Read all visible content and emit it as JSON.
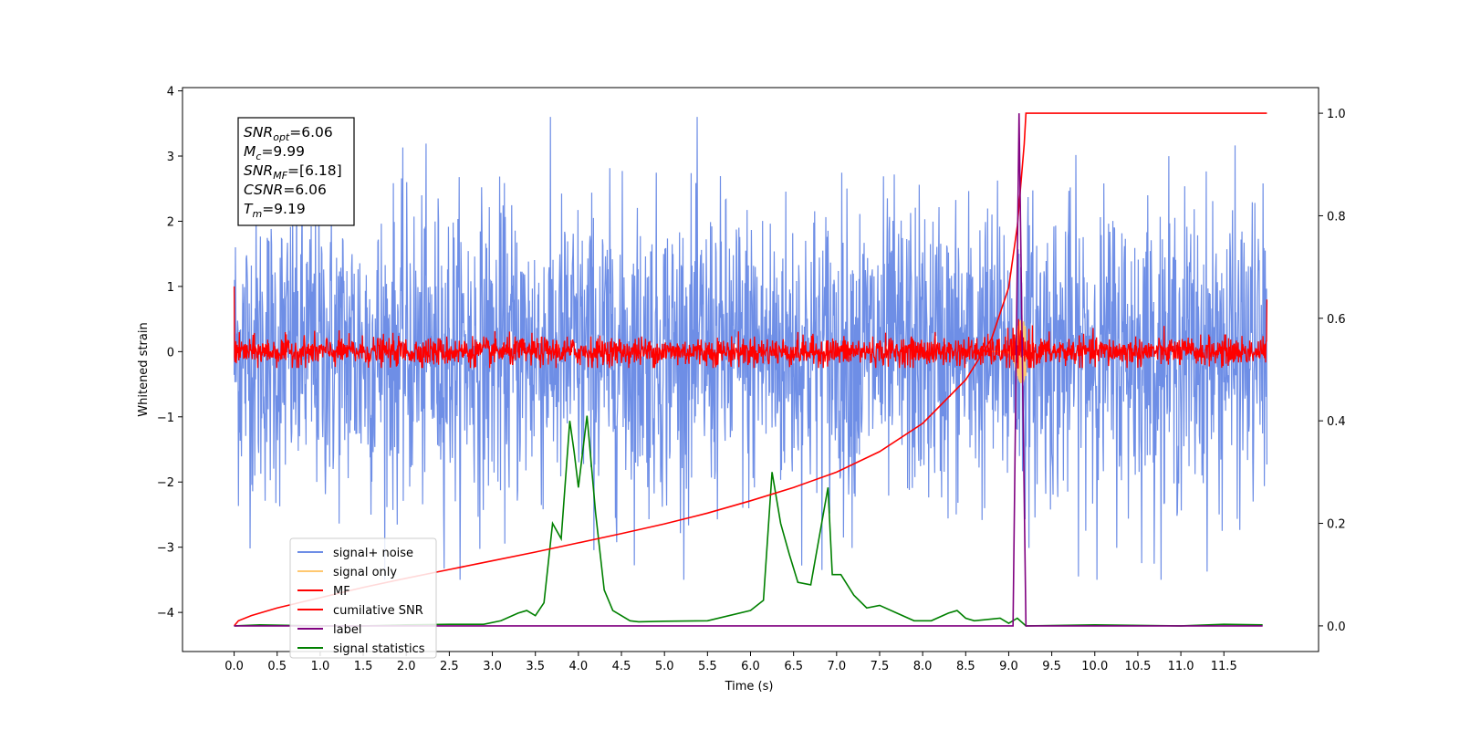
{
  "chart_data": {
    "type": "line",
    "xlabel": "Time (s)",
    "ylabel": "Whitened strain",
    "xlim": [
      -0.6,
      12.6
    ],
    "ylim": [
      -4.6,
      4.05
    ],
    "y2lim": [
      -0.05,
      1.05
    ],
    "x_ticks": [
      "0.0",
      "0.5",
      "1.0",
      "1.5",
      "2.0",
      "2.5",
      "3.0",
      "3.5",
      "4.0",
      "4.5",
      "5.0",
      "5.5",
      "6.0",
      "6.5",
      "7.0",
      "7.5",
      "8.0",
      "8.5",
      "9.0",
      "9.5",
      "10.0",
      "10.5",
      "11.0",
      "11.5"
    ],
    "y_ticks": [
      "4",
      "3",
      "2",
      "1",
      "0",
      "−1",
      "−2",
      "−3",
      "−4"
    ],
    "y2_ticks": [
      "1.0",
      "0.8",
      "0.6",
      "0.4",
      "0.2",
      "0.0"
    ],
    "grid": false,
    "legend_position": "lower-left",
    "colors": {
      "signal_noise": "#6e8ee6",
      "signal_only": "#ffc870",
      "mf": "#ff0000",
      "cumulative_snr": "#ff0000",
      "label": "#800080",
      "signal_statistics": "#008000"
    },
    "series": [
      {
        "name": "signal+ noise",
        "axis": "left",
        "description_values": {
          "x_range": [
            0,
            12
          ],
          "envelope": [
            -3.5,
            3.6
          ]
        }
      },
      {
        "name": "signal only",
        "axis": "left",
        "description_values": {
          "x_range": [
            0,
            12
          ],
          "peak_time": 9.15,
          "peak_amplitude": 0.5
        }
      },
      {
        "name": "MF",
        "axis": "left",
        "description_values": {
          "x_range": [
            0,
            12
          ],
          "envelope": [
            -0.25,
            0.5
          ],
          "start_value": 1.0,
          "end_value": 0.8
        }
      },
      {
        "name": "cumilative SNR",
        "axis": "right",
        "x": [
          0.0,
          0.05,
          0.2,
          0.5,
          1.0,
          1.5,
          2.0,
          2.5,
          3.0,
          3.5,
          4.0,
          4.5,
          5.0,
          5.5,
          6.0,
          6.5,
          7.0,
          7.5,
          8.0,
          8.5,
          8.8,
          9.0,
          9.1,
          9.18,
          9.2,
          12.0
        ],
        "y": [
          0.0,
          0.01,
          0.02,
          0.035,
          0.055,
          0.075,
          0.093,
          0.11,
          0.127,
          0.144,
          0.162,
          0.18,
          0.199,
          0.22,
          0.244,
          0.27,
          0.3,
          0.34,
          0.395,
          0.48,
          0.56,
          0.66,
          0.78,
          0.94,
          1.0,
          1.0
        ]
      },
      {
        "name": "label",
        "axis": "right",
        "x": [
          0.0,
          9.05,
          9.12,
          9.2,
          11.95
        ],
        "y": [
          0.0,
          0.0,
          1.0,
          0.0,
          0.0
        ]
      },
      {
        "name": "signal statistics",
        "axis": "right",
        "x": [
          0.0,
          0.3,
          0.6,
          1.0,
          1.5,
          2.0,
          2.5,
          2.9,
          3.1,
          3.3,
          3.4,
          3.5,
          3.6,
          3.7,
          3.8,
          3.9,
          3.95,
          4.0,
          4.1,
          4.2,
          4.3,
          4.4,
          4.5,
          4.6,
          4.7,
          5.0,
          5.5,
          6.0,
          6.15,
          6.25,
          6.35,
          6.45,
          6.55,
          6.7,
          6.9,
          6.95,
          7.05,
          7.2,
          7.35,
          7.5,
          7.7,
          7.9,
          8.1,
          8.3,
          8.4,
          8.5,
          8.6,
          8.9,
          9.0,
          9.1,
          9.2,
          10.0,
          11.0,
          11.5,
          11.95
        ],
        "y": [
          0.0,
          0.002,
          0.001,
          0.0,
          0.0,
          0.002,
          0.003,
          0.003,
          0.01,
          0.025,
          0.03,
          0.02,
          0.045,
          0.2,
          0.17,
          0.4,
          0.34,
          0.27,
          0.41,
          0.22,
          0.07,
          0.03,
          0.02,
          0.01,
          0.008,
          0.009,
          0.01,
          0.03,
          0.05,
          0.3,
          0.2,
          0.14,
          0.085,
          0.08,
          0.27,
          0.1,
          0.1,
          0.06,
          0.035,
          0.04,
          0.025,
          0.01,
          0.01,
          0.025,
          0.03,
          0.015,
          0.01,
          0.015,
          0.005,
          0.015,
          0.0,
          0.002,
          0.0,
          0.003,
          0.002
        ]
      }
    ],
    "annotation_box": {
      "lines": [
        {
          "base": "SNR",
          "sub": "opt",
          "value": "=6.06"
        },
        {
          "base": "M",
          "sub": "c",
          "value": "=9.99"
        },
        {
          "base": "SNR",
          "sub": "MF",
          "value": "=[6.18]"
        },
        {
          "base": "CSNR",
          "sub": "",
          "value": "=6.06"
        },
        {
          "base": "T",
          "sub": "m",
          "value": "=9.19"
        }
      ]
    }
  }
}
